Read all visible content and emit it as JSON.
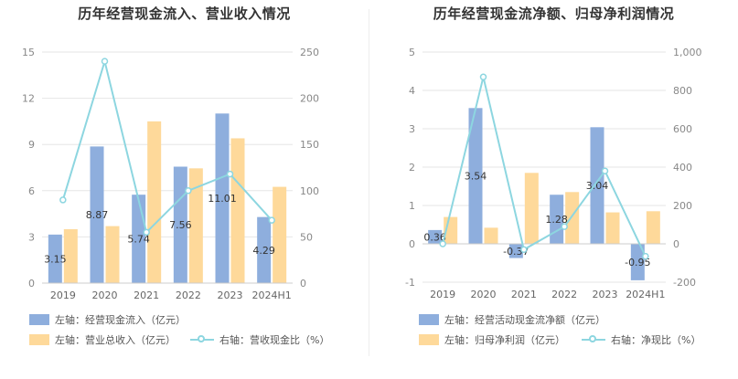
{
  "colors": {
    "bar1": "#8eaedd",
    "bar2": "#fed99a",
    "line": "#8dd6e0"
  },
  "chart_data": [
    {
      "type": "bar",
      "title": "历年经营现金流入、营业收入情况",
      "categories": [
        "2019",
        "2020",
        "2021",
        "2022",
        "2023",
        "2024H1"
      ],
      "left_axis": {
        "ticks": [
          "0",
          "3",
          "6",
          "9",
          "12",
          "15"
        ],
        "range": [
          0,
          15
        ]
      },
      "right_axis": {
        "ticks": [
          "0",
          "50",
          "100",
          "150",
          "200",
          "250"
        ],
        "range": [
          0,
          250
        ]
      },
      "series": [
        {
          "name": "左轴：经营现金流入（亿元）",
          "kind": "bar",
          "axis": "left",
          "values": [
            3.15,
            8.87,
            5.74,
            7.56,
            11.01,
            4.29
          ],
          "labels": [
            "3.15",
            "8.87",
            "5.74",
            "7.56",
            "11.01",
            "4.29"
          ]
        },
        {
          "name": "左轴：营业总收入（亿元）",
          "kind": "bar",
          "axis": "left",
          "values": [
            3.5,
            3.7,
            10.5,
            7.45,
            9.4,
            6.25
          ]
        },
        {
          "name": "右轴：营收现金比（%）",
          "kind": "line",
          "axis": "right",
          "values": [
            90,
            240,
            55,
            100,
            118,
            68
          ]
        }
      ]
    },
    {
      "type": "bar",
      "title": "历年经营现金流净额、归母净利润情况",
      "categories": [
        "2019",
        "2020",
        "2021",
        "2022",
        "2023",
        "2024H1"
      ],
      "left_axis": {
        "ticks": [
          "-1",
          "0",
          "1",
          "2",
          "3",
          "4",
          "5"
        ],
        "range": [
          -1,
          5
        ]
      },
      "right_axis": {
        "ticks": [
          "-200",
          "0",
          "200",
          "400",
          "600",
          "800",
          "1,000"
        ],
        "range": [
          -200,
          1000
        ]
      },
      "series": [
        {
          "name": "左轴：经营活动现金流净额（亿元）",
          "kind": "bar",
          "axis": "left",
          "values": [
            0.36,
            3.54,
            -0.37,
            1.28,
            3.04,
            -0.95
          ],
          "labels": [
            "0.36",
            "3.54",
            "-0.37",
            "1.28",
            "3.04",
            "-0.95"
          ]
        },
        {
          "name": "左轴：归母净利润（亿元）",
          "kind": "bar",
          "axis": "left",
          "values": [
            0.7,
            0.42,
            1.85,
            1.35,
            0.82,
            0.85
          ]
        },
        {
          "name": "右轴：净现比（%）",
          "kind": "line",
          "axis": "right",
          "values": [
            0,
            870,
            -30,
            90,
            380,
            -65
          ]
        }
      ]
    }
  ]
}
